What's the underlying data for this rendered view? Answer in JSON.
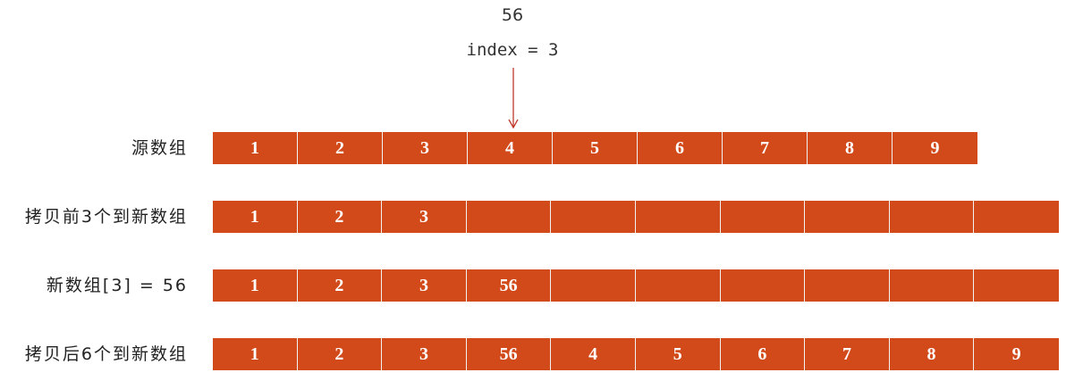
{
  "insert_value": "56",
  "index_label": "index = 3",
  "rows": [
    {
      "label": "源数组",
      "cells": [
        "1",
        "2",
        "3",
        "4",
        "5",
        "6",
        "7",
        "8",
        "9"
      ]
    },
    {
      "label": "拷贝前3个到新数组",
      "cells": [
        "1",
        "2",
        "3",
        "",
        "",
        "",
        "",
        "",
        "",
        ""
      ]
    },
    {
      "label": "新数组[3] = 56",
      "cells": [
        "1",
        "2",
        "3",
        "56",
        "",
        "",
        "",
        "",
        "",
        ""
      ]
    },
    {
      "label": "拷贝后6个到新数组",
      "cells": [
        "1",
        "2",
        "3",
        "56",
        "4",
        "5",
        "6",
        "7",
        "8",
        "9"
      ]
    }
  ],
  "colors": {
    "cell_fill": "#d24a1a",
    "cell_text": "#ffffff",
    "arrow": "#c0392b"
  },
  "icons": {
    "pointer": "down-arrow-icon"
  }
}
